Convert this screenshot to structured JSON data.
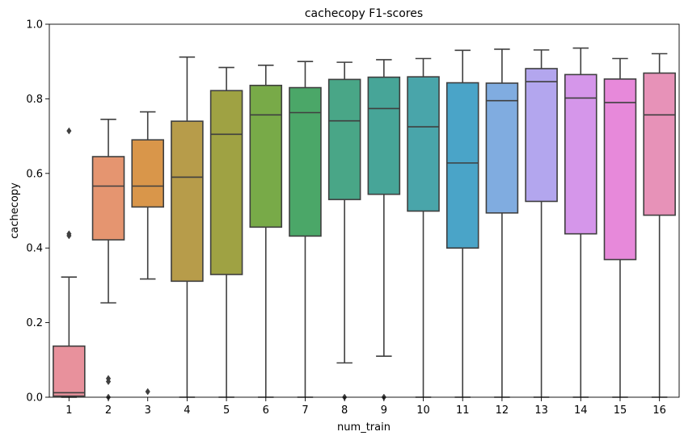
{
  "chart_data": {
    "type": "box",
    "title": "cachecopy F1-scores",
    "xlabel": "num_train",
    "ylabel": "cachecopy",
    "ylim": [
      0,
      1
    ],
    "yticks": [
      "0.0",
      "0.2",
      "0.4",
      "0.6",
      "0.8",
      "1.0"
    ],
    "categories": [
      "1",
      "2",
      "3",
      "4",
      "5",
      "6",
      "7",
      "8",
      "9",
      "10",
      "11",
      "12",
      "13",
      "14",
      "15",
      "16"
    ],
    "boxes": [
      {
        "category": "1",
        "color": "#e8919c",
        "min": 0.0,
        "q1": 0.003,
        "median": 0.012,
        "q3": 0.137,
        "max": 0.322,
        "outliers": [
          0.714,
          0.438,
          0.433
        ]
      },
      {
        "category": "2",
        "color": "#e59570",
        "min": 0.253,
        "q1": 0.422,
        "median": 0.566,
        "q3": 0.645,
        "max": 0.745,
        "outliers": [
          0.05,
          0.042,
          0.0
        ]
      },
      {
        "category": "3",
        "color": "#d9964a",
        "min": 0.317,
        "q1": 0.51,
        "median": 0.566,
        "q3": 0.69,
        "max": 0.765,
        "outliers": [
          0.015
        ]
      },
      {
        "category": "4",
        "color": "#b79c4a",
        "min": 0.0,
        "q1": 0.311,
        "median": 0.59,
        "q3": 0.74,
        "max": 0.912,
        "outliers": []
      },
      {
        "category": "5",
        "color": "#9fa243",
        "min": 0.0,
        "q1": 0.329,
        "median": 0.705,
        "q3": 0.822,
        "max": 0.884,
        "outliers": []
      },
      {
        "category": "6",
        "color": "#78aa48",
        "min": 0.0,
        "q1": 0.456,
        "median": 0.757,
        "q3": 0.836,
        "max": 0.89,
        "outliers": []
      },
      {
        "category": "7",
        "color": "#4ba768",
        "min": 0.0,
        "q1": 0.432,
        "median": 0.763,
        "q3": 0.83,
        "max": 0.9,
        "outliers": []
      },
      {
        "category": "8",
        "color": "#49a687",
        "min": 0.092,
        "q1": 0.53,
        "median": 0.741,
        "q3": 0.852,
        "max": 0.898,
        "outliers": [
          0.0
        ]
      },
      {
        "category": "9",
        "color": "#47a598",
        "min": 0.11,
        "q1": 0.544,
        "median": 0.774,
        "q3": 0.858,
        "max": 0.905,
        "outliers": [
          0.0
        ]
      },
      {
        "category": "10",
        "color": "#49a5aa",
        "min": 0.0,
        "q1": 0.499,
        "median": 0.725,
        "q3": 0.859,
        "max": 0.908,
        "outliers": []
      },
      {
        "category": "11",
        "color": "#4aa4c8",
        "min": 0.0,
        "q1": 0.4,
        "median": 0.628,
        "q3": 0.843,
        "max": 0.93,
        "outliers": []
      },
      {
        "category": "12",
        "color": "#80ace0",
        "min": 0.0,
        "q1": 0.494,
        "median": 0.795,
        "q3": 0.842,
        "max": 0.933,
        "outliers": []
      },
      {
        "category": "13",
        "color": "#b3a6ee",
        "min": 0.0,
        "q1": 0.525,
        "median": 0.846,
        "q3": 0.881,
        "max": 0.931,
        "outliers": []
      },
      {
        "category": "14",
        "color": "#d596ea",
        "min": 0.0,
        "q1": 0.438,
        "median": 0.802,
        "q3": 0.865,
        "max": 0.936,
        "outliers": []
      },
      {
        "category": "15",
        "color": "#e789da",
        "min": 0.0,
        "q1": 0.369,
        "median": 0.79,
        "q3": 0.853,
        "max": 0.908,
        "outliers": []
      },
      {
        "category": "16",
        "color": "#e792b8",
        "min": 0.0,
        "q1": 0.488,
        "median": 0.757,
        "q3": 0.869,
        "max": 0.921,
        "outliers": []
      }
    ],
    "line_color": "#3f3f3f",
    "grid": false,
    "legend": "none"
  }
}
